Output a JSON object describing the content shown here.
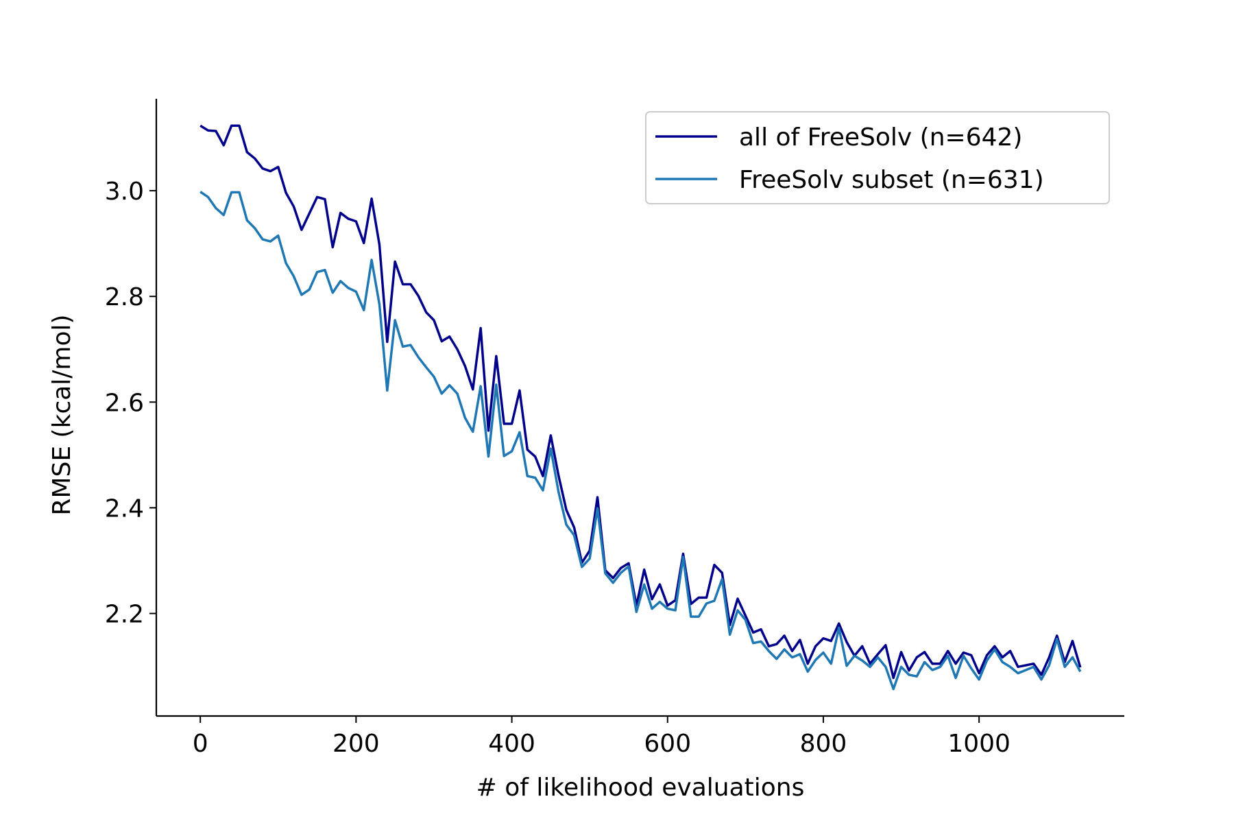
{
  "chart_data": {
    "type": "line",
    "xlabel": "# of likelihood evaluations",
    "ylabel": "RMSE (kcal/mol)",
    "x": [
      0,
      10,
      20,
      30,
      40,
      50,
      60,
      70,
      80,
      90,
      100,
      110,
      120,
      130,
      140,
      150,
      160,
      170,
      180,
      190,
      200,
      210,
      220,
      230,
      240,
      250,
      260,
      270,
      280,
      290,
      300,
      310,
      320,
      330,
      340,
      350,
      360,
      370,
      380,
      390,
      400,
      410,
      420,
      430,
      440,
      450,
      460,
      470,
      480,
      490,
      500,
      510,
      520,
      530,
      540,
      550,
      560,
      570,
      580,
      590,
      600,
      610,
      620,
      630,
      640,
      650,
      660,
      670,
      680,
      690,
      700,
      710,
      720,
      730,
      740,
      750,
      760,
      770,
      780,
      790,
      800,
      810,
      820,
      830,
      840,
      850,
      860,
      870,
      880,
      890,
      900,
      910,
      920,
      930,
      940,
      950,
      960,
      970,
      980,
      990,
      1000,
      1010,
      1020,
      1030,
      1040,
      1050,
      1060,
      1070,
      1080,
      1090,
      1100,
      1110,
      1120,
      1130
    ],
    "series": [
      {
        "name": "all of FreeSolv (n=642)",
        "color": "#00008b",
        "values": [
          3.123,
          3.114,
          3.113,
          3.086,
          3.123,
          3.123,
          3.073,
          3.061,
          3.042,
          3.037,
          3.045,
          2.996,
          2.97,
          2.926,
          2.957,
          2.988,
          2.984,
          2.893,
          2.958,
          2.947,
          2.942,
          2.901,
          2.985,
          2.898,
          2.714,
          2.866,
          2.823,
          2.823,
          2.801,
          2.77,
          2.755,
          2.715,
          2.724,
          2.7,
          2.668,
          2.624,
          2.74,
          2.546,
          2.687,
          2.559,
          2.559,
          2.622,
          2.51,
          2.497,
          2.46,
          2.537,
          2.461,
          2.396,
          2.363,
          2.296,
          2.319,
          2.42,
          2.282,
          2.267,
          2.286,
          2.295,
          2.215,
          2.283,
          2.227,
          2.255,
          2.215,
          2.225,
          2.313,
          2.218,
          2.23,
          2.23,
          2.292,
          2.277,
          2.178,
          2.228,
          2.196,
          2.164,
          2.17,
          2.138,
          2.142,
          2.158,
          2.129,
          2.15,
          2.105,
          2.138,
          2.153,
          2.148,
          2.181,
          2.146,
          2.12,
          2.138,
          2.105,
          2.123,
          2.14,
          2.078,
          2.127,
          2.092,
          2.117,
          2.127,
          2.105,
          2.105,
          2.129,
          2.105,
          2.126,
          2.121,
          2.087,
          2.121,
          2.138,
          2.117,
          2.129,
          2.099,
          2.102,
          2.105,
          2.084,
          2.117,
          2.158,
          2.108,
          2.148,
          2.098
        ]
      },
      {
        "name": "FreeSolv subset (n=631)",
        "color": "#1f77b4",
        "values": [
          2.998,
          2.988,
          2.967,
          2.954,
          2.997,
          2.997,
          2.944,
          2.929,
          2.908,
          2.904,
          2.915,
          2.863,
          2.838,
          2.803,
          2.813,
          2.846,
          2.85,
          2.807,
          2.829,
          2.816,
          2.809,
          2.774,
          2.869,
          2.785,
          2.622,
          2.755,
          2.705,
          2.708,
          2.685,
          2.666,
          2.648,
          2.616,
          2.632,
          2.616,
          2.57,
          2.544,
          2.63,
          2.497,
          2.633,
          2.498,
          2.507,
          2.543,
          2.46,
          2.457,
          2.433,
          2.512,
          2.43,
          2.368,
          2.348,
          2.288,
          2.304,
          2.399,
          2.276,
          2.258,
          2.277,
          2.289,
          2.203,
          2.255,
          2.209,
          2.222,
          2.209,
          2.206,
          2.307,
          2.194,
          2.194,
          2.219,
          2.224,
          2.265,
          2.16,
          2.206,
          2.188,
          2.144,
          2.147,
          2.129,
          2.114,
          2.132,
          2.117,
          2.123,
          2.09,
          2.112,
          2.126,
          2.105,
          2.173,
          2.101,
          2.12,
          2.111,
          2.099,
          2.117,
          2.099,
          2.057,
          2.099,
          2.084,
          2.081,
          2.108,
          2.093,
          2.099,
          2.12,
          2.078,
          2.12,
          2.096,
          2.075,
          2.111,
          2.132,
          2.108,
          2.099,
          2.087,
          2.093,
          2.099,
          2.075,
          2.102,
          2.152,
          2.099,
          2.117,
          2.09
        ]
      }
    ],
    "xlim": [
      -56.5,
      1186.5
    ],
    "xticks": [
      0,
      200,
      400,
      600,
      800,
      1000
    ],
    "ylim": [
      2.006,
      3.174
    ],
    "yticks": [
      {
        "value": 2.2,
        "label": "2.2"
      },
      {
        "value": 2.4,
        "label": "2.4"
      },
      {
        "value": 2.6,
        "label": "2.6"
      },
      {
        "value": 2.8,
        "label": "2.8"
      },
      {
        "value": 3.0,
        "label": "3.0"
      }
    ],
    "grid": false,
    "legend": "upper right"
  }
}
